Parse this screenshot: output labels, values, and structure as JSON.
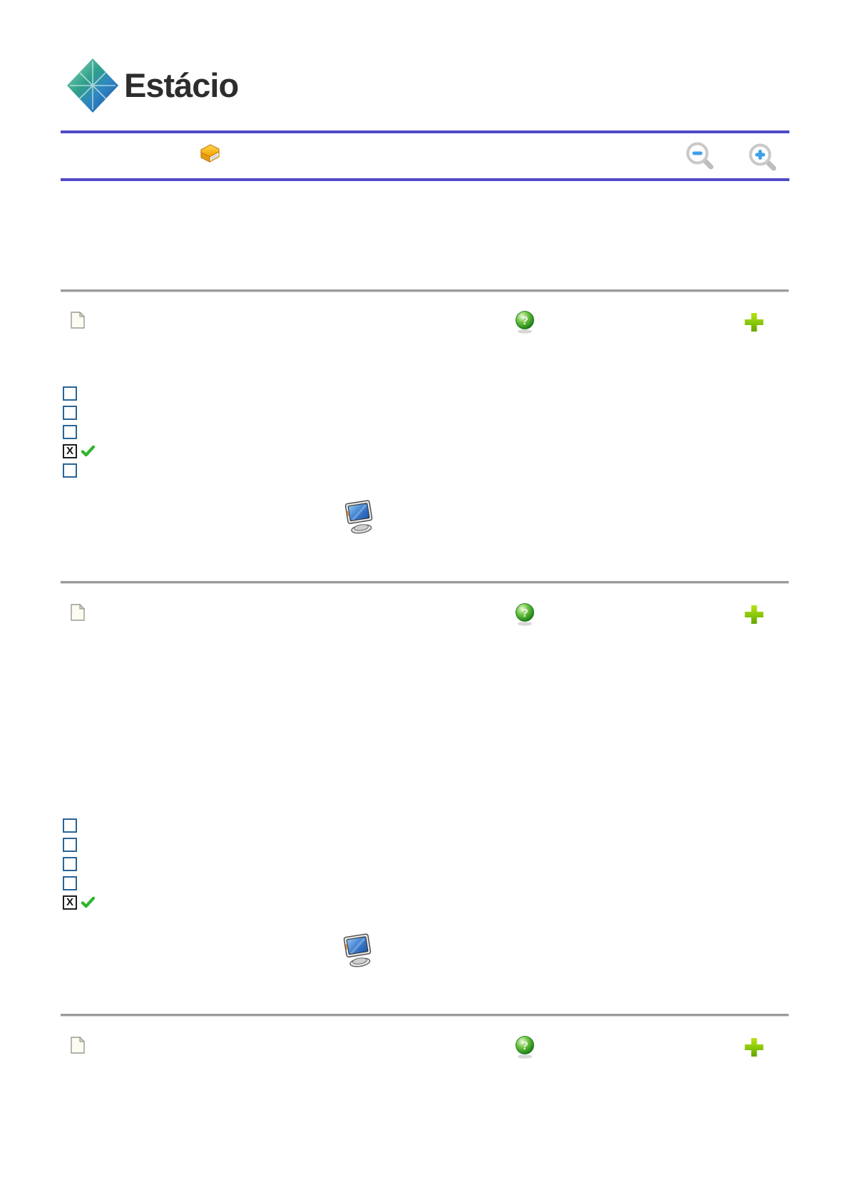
{
  "brand": {
    "logo_text": "Estácio",
    "logo_icon": "diamond-lattice-logo"
  },
  "colors": {
    "accent_purple": "#524ac8",
    "divider_gray": "#9b9b9b",
    "checkbox_border_blue": "#2a6496",
    "checked_box_border": "#1d1d1d",
    "check_green": "#2db52d",
    "plus_green_light": "#b8e216",
    "plus_green_dark": "#64a400",
    "help_sphere_green": "#3f9e22",
    "magnifier_blue": "#3fa0e8",
    "book_yellow": "#ffd84d",
    "monitor_screen_blue": "#3f7fd0"
  },
  "header": {
    "toolbar": {
      "book_icon": "book-icon",
      "zoom_out_icon": "zoom-out-icon",
      "zoom_in_icon": "zoom-in-icon"
    }
  },
  "glyphs": {
    "checkbox_checked": "X",
    "help_mark": "?"
  },
  "questions": [
    {
      "marker_icon": "document-icon",
      "help_icon": "help-icon",
      "add_icon": "add-icon",
      "monitor_icon": true,
      "options": [
        {
          "checked": false
        },
        {
          "checked": false
        },
        {
          "checked": false
        },
        {
          "checked": true,
          "result_check": true
        },
        {
          "checked": false
        }
      ]
    },
    {
      "marker_icon": "document-icon",
      "help_icon": "help-icon",
      "add_icon": "add-icon",
      "monitor_icon": true,
      "options": [
        {
          "checked": false
        },
        {
          "checked": false
        },
        {
          "checked": false
        },
        {
          "checked": false
        },
        {
          "checked": true,
          "result_check": true
        }
      ]
    },
    {
      "marker_icon": "document-icon",
      "help_icon": "help-icon",
      "add_icon": "add-icon",
      "monitor_icon": false,
      "options": []
    }
  ]
}
